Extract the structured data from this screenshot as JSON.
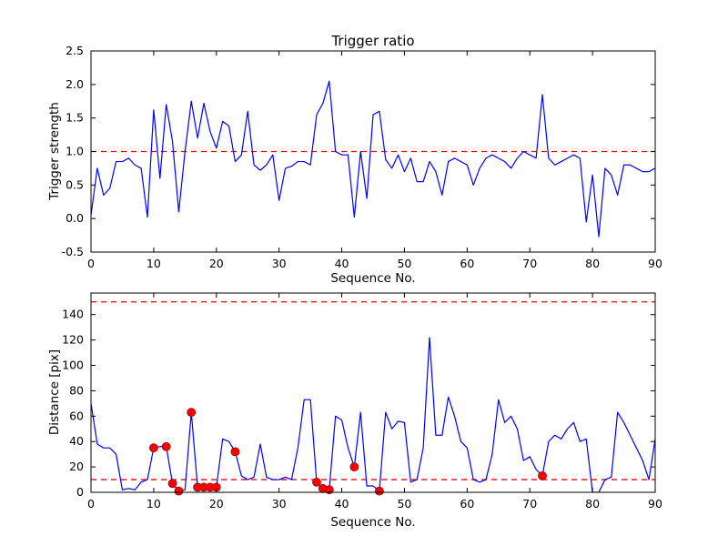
{
  "figure": {
    "background": "#ffffff",
    "line_color": "#0000ff",
    "threshold_color": "#ff0000",
    "marker_color": "#ff0000",
    "marker_edge_color": "#990000",
    "axis_color": "#000000"
  },
  "chart_data": [
    {
      "type": "line",
      "title": "Trigger ratio",
      "xlabel": "Sequence No.",
      "ylabel": "Trigger strength",
      "xlim": [
        0,
        90
      ],
      "ylim": [
        -0.5,
        2.5
      ],
      "grid": false,
      "legend": "none",
      "threshold_lines": [
        1.0
      ],
      "xtick_values": [
        0,
        10,
        20,
        30,
        40,
        50,
        60,
        70,
        80,
        90
      ],
      "xtick_labels": [
        "0",
        "10",
        "20",
        "30",
        "40",
        "50",
        "60",
        "70",
        "80",
        "90"
      ],
      "ytick_values": [
        -0.5,
        0.0,
        0.5,
        1.0,
        1.5,
        2.0,
        2.5
      ],
      "ytick_labels": [
        "-0.5",
        "0.0",
        "0.5",
        "1.0",
        "1.5",
        "2.0",
        "2.5"
      ],
      "x": [
        0,
        1,
        2,
        3,
        4,
        5,
        6,
        7,
        8,
        9,
        10,
        11,
        12,
        13,
        14,
        15,
        16,
        17,
        18,
        19,
        20,
        21,
        22,
        23,
        24,
        25,
        26,
        27,
        28,
        29,
        30,
        31,
        32,
        33,
        34,
        35,
        36,
        37,
        38,
        39,
        40,
        41,
        42,
        43,
        44,
        45,
        46,
        47,
        48,
        49,
        50,
        51,
        52,
        53,
        54,
        55,
        56,
        57,
        58,
        59,
        60,
        61,
        62,
        63,
        64,
        65,
        66,
        67,
        68,
        69,
        70,
        71,
        72,
        73,
        74,
        75,
        76,
        77,
        78,
        79,
        80,
        81,
        82,
        83,
        84,
        85,
        86,
        87,
        88,
        89,
        90
      ],
      "y": [
        0.05,
        0.75,
        0.35,
        0.45,
        0.85,
        0.85,
        0.9,
        0.8,
        0.75,
        0.02,
        1.62,
        0.6,
        1.7,
        1.15,
        0.1,
        1.0,
        1.75,
        1.2,
        1.72,
        1.3,
        1.05,
        1.45,
        1.38,
        0.85,
        0.95,
        1.6,
        0.8,
        0.72,
        0.8,
        0.95,
        0.27,
        0.75,
        0.78,
        0.85,
        0.85,
        0.8,
        1.55,
        1.72,
        2.05,
        1.0,
        0.95,
        0.95,
        0.02,
        1.0,
        0.3,
        1.55,
        1.6,
        0.88,
        0.75,
        0.95,
        0.7,
        0.9,
        0.55,
        0.55,
        0.85,
        0.7,
        0.35,
        0.85,
        0.9,
        0.85,
        0.8,
        0.5,
        0.75,
        0.9,
        0.95,
        0.9,
        0.85,
        0.75,
        0.9,
        1.0,
        0.95,
        0.9,
        1.85,
        0.9,
        0.8,
        0.85,
        0.9,
        0.95,
        0.9,
        -0.05,
        0.65,
        -0.27,
        0.75,
        0.65,
        0.35,
        0.8,
        0.8,
        0.75,
        0.7,
        0.7,
        0.75
      ]
    },
    {
      "type": "line+scatter",
      "title": "",
      "xlabel": "Sequence No.",
      "ylabel": "Distance [pix]",
      "xlim": [
        0,
        90
      ],
      "ylim": [
        0,
        157
      ],
      "grid": false,
      "legend": "none",
      "threshold_lines": [
        10,
        150
      ],
      "xtick_values": [
        0,
        10,
        20,
        30,
        40,
        50,
        60,
        70,
        80,
        90
      ],
      "xtick_labels": [
        "0",
        "10",
        "20",
        "30",
        "40",
        "50",
        "60",
        "70",
        "80",
        "90"
      ],
      "ytick_values": [
        0,
        20,
        40,
        60,
        80,
        100,
        120,
        140
      ],
      "ytick_labels": [
        "0",
        "20",
        "40",
        "60",
        "80",
        "100",
        "120",
        "140"
      ],
      "x": [
        0,
        1,
        2,
        3,
        4,
        5,
        6,
        7,
        8,
        9,
        10,
        11,
        12,
        13,
        14,
        15,
        16,
        17,
        18,
        19,
        20,
        21,
        22,
        23,
        24,
        25,
        26,
        27,
        28,
        29,
        30,
        31,
        32,
        33,
        34,
        35,
        36,
        37,
        38,
        39,
        40,
        41,
        42,
        43,
        44,
        45,
        46,
        47,
        48,
        49,
        50,
        51,
        52,
        53,
        54,
        55,
        56,
        57,
        58,
        59,
        60,
        61,
        62,
        63,
        64,
        65,
        66,
        67,
        68,
        69,
        70,
        71,
        72,
        73,
        74,
        75,
        76,
        77,
        78,
        79,
        80,
        81,
        82,
        83,
        84,
        85,
        86,
        87,
        88,
        89,
        90
      ],
      "y": [
        70,
        38,
        35,
        35,
        30,
        2,
        3,
        2,
        8,
        10,
        35,
        36,
        36,
        7,
        1,
        2,
        63,
        4,
        4,
        4,
        4,
        42,
        40,
        32,
        13,
        10,
        12,
        38,
        12,
        10,
        10,
        12,
        10,
        35,
        73,
        73,
        8,
        3,
        2,
        60,
        57,
        35,
        20,
        63,
        5,
        5,
        1,
        63,
        50,
        56,
        55,
        8,
        10,
        35,
        122,
        45,
        45,
        75,
        60,
        40,
        35,
        10,
        8,
        10,
        30,
        73,
        55,
        60,
        50,
        25,
        28,
        18,
        13,
        40,
        45,
        42,
        50,
        55,
        40,
        42,
        0,
        0,
        10,
        12,
        63,
        55,
        45,
        35,
        25,
        10,
        42
      ],
      "scatter": {
        "x": [
          10,
          12,
          13,
          14,
          16,
          17,
          18,
          19,
          20,
          23,
          36,
          37,
          38,
          42,
          46,
          72
        ],
        "y": [
          35,
          36,
          7,
          1,
          63,
          4,
          4,
          4,
          4,
          32,
          8,
          3,
          2,
          20,
          1,
          13
        ]
      }
    }
  ]
}
